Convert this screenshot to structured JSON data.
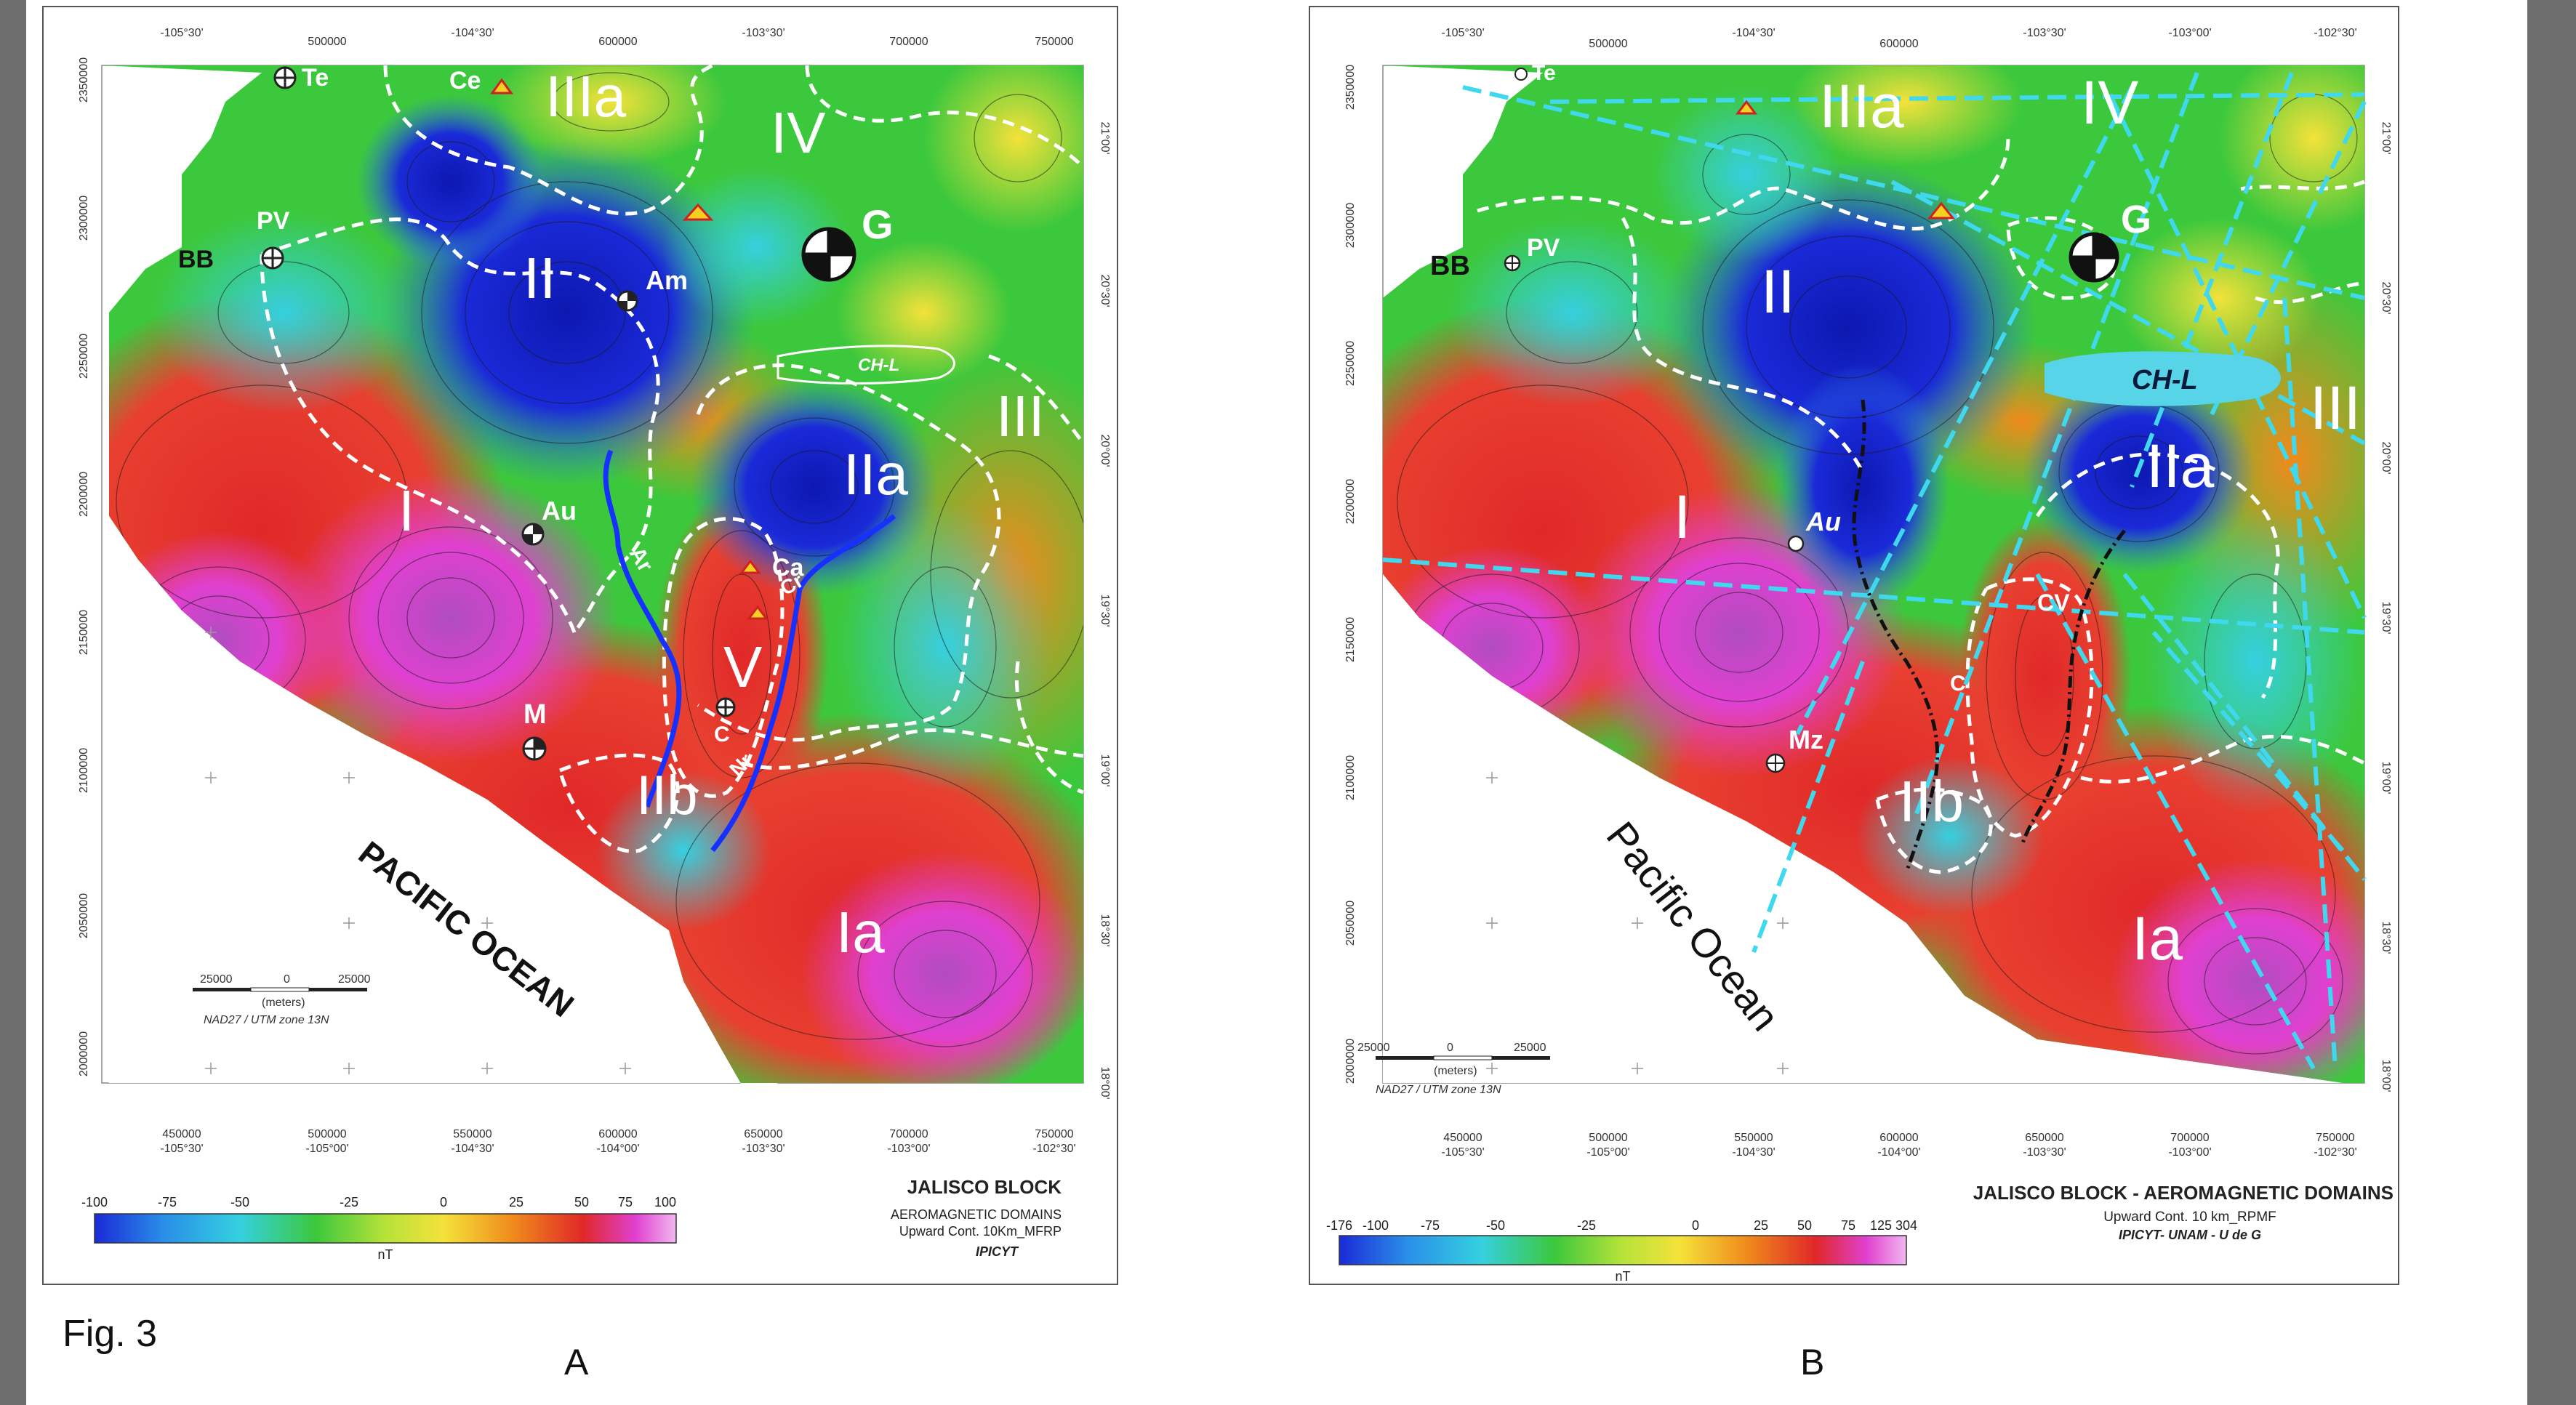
{
  "caption": {
    "fig": "Fig. 3",
    "panel_a": "A",
    "panel_b": "B"
  },
  "map_a": {
    "domains": [
      "IIIa",
      "IV",
      "II",
      "I",
      "IIa",
      "III",
      "V",
      "IIb",
      "Ia"
    ],
    "towns": [
      "Te",
      "Ce",
      "PV",
      "BB",
      "Am",
      "G",
      "Au",
      "Ca",
      "C",
      "M"
    ],
    "rivers": [
      "Ar",
      "Cr",
      "Nr"
    ],
    "lake": "CH-L",
    "ocean": "PACIFIC  OCEAN",
    "title": "JALISCO BLOCK",
    "subtitle1": "AEROMAGNETIC  DOMAINS",
    "subtitle2": "Upward Cont. 10Km_MFRP",
    "credit": "IPICYT",
    "scale": {
      "left": "25000",
      "mid": "0",
      "right": "25000",
      "unit": "(meters)"
    },
    "projection": "NAD27 / UTM zone 13N",
    "colorbar": {
      "ticks": [
        "-100",
        "-75",
        "-50",
        "-25",
        "0",
        "25",
        "50",
        "75",
        "100"
      ],
      "unit": "nT"
    },
    "easting": [
      "450000",
      "500000",
      "550000",
      "600000",
      "650000",
      "700000",
      "750000"
    ],
    "lon_bottom": [
      "-105°30'",
      "-105°00'",
      "-104°30'",
      "-104°00'",
      "-103°30'",
      "-103°00'",
      "-102°30'"
    ],
    "lon_top": [
      "-105°30'",
      "500000",
      "-104°30'",
      "600000",
      "-103°30'",
      "700000",
      "750000"
    ],
    "northing": [
      "2350000",
      "2300000",
      "2250000",
      "2200000",
      "2150000",
      "2100000",
      "2050000",
      "2000000"
    ],
    "lat": [
      "21°00'",
      "20°30'",
      "20°00'",
      "19°30'",
      "19°00'",
      "18°30'",
      "18°00'"
    ]
  },
  "map_b": {
    "domains": [
      "IIIa",
      "IV",
      "II",
      "I",
      "IIa",
      "III",
      "IIb",
      "Ia"
    ],
    "towns": [
      "Te",
      "BB",
      "PV",
      "G",
      "Au",
      "Mz",
      "CV",
      "C"
    ],
    "lake": "CH-L",
    "ocean": "Pacific Ocean",
    "title": "JALISCO BLOCK - AEROMAGNETIC DOMAINS",
    "subtitle": "Upward Cont. 10 km_RPMF",
    "credit": "IPICYT- UNAM - U de G",
    "scale": {
      "left": "25000",
      "mid": "0",
      "right": "25000",
      "unit": "(meters)"
    },
    "projection": "NAD27 / UTM zone 13N",
    "colorbar": {
      "ticks": [
        "-176",
        "-100",
        "-75",
        "-50",
        "-25",
        "0",
        "25",
        "50",
        "75",
        "125",
        "304"
      ],
      "unit": "nT"
    },
    "easting": [
      "450000",
      "500000",
      "550000",
      "600000",
      "650000",
      "700000",
      "750000"
    ],
    "lon_bottom": [
      "-105°30'",
      "-105°00'",
      "-104°30'",
      "-104°00'",
      "-103°30'",
      "-103°00'",
      "-102°30'"
    ],
    "northing": [
      "2350000",
      "2300000",
      "2250000",
      "2200000",
      "2150000",
      "2100000",
      "2050000",
      "2000000"
    ],
    "lat": [
      "21°00'",
      "20°30'",
      "20°00'",
      "19°30'",
      "19°00'",
      "18°30'",
      "18°00'"
    ]
  },
  "colors": {
    "magenta": "#e040d0",
    "red": "#e02828",
    "orange": "#f08a1c",
    "yellow": "#f4e23a",
    "green": "#3cc83c",
    "cyan": "#35d0e0",
    "blue": "#1a2ad8",
    "river": "#1530ff",
    "lineament": "#3fd8ee",
    "fault": "#111111",
    "boundary": "#ffffff"
  }
}
